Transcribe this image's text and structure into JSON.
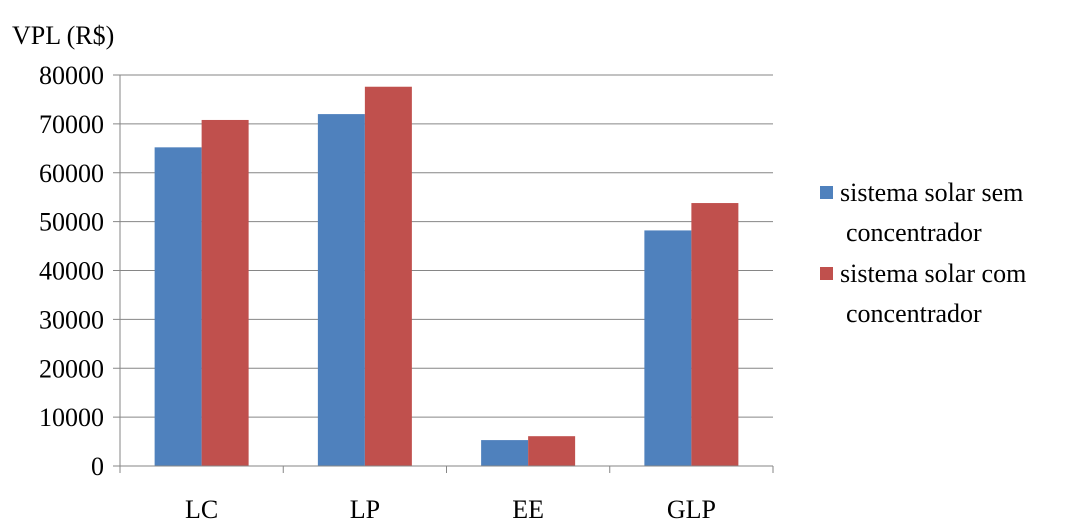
{
  "chart_data": {
    "type": "bar",
    "title": "",
    "ylabel": "VPL (R$)",
    "xlabel": "",
    "ylim": [
      0,
      80000
    ],
    "yticks": [
      0,
      10000,
      20000,
      30000,
      40000,
      50000,
      60000,
      70000,
      80000
    ],
    "categories": [
      "LC",
      "LP",
      "EE",
      "GLP"
    ],
    "series": [
      {
        "name": "sistema solar sem concentrador",
        "values": [
          65200,
          72000,
          5300,
          48200
        ],
        "color": "#4F81BD"
      },
      {
        "name": "sistema solar com concentrador",
        "values": [
          70800,
          77600,
          6100,
          53800
        ],
        "color": "#C0504D"
      }
    ],
    "legend": {
      "position": "right",
      "entries": [
        {
          "lines": [
            "sistema solar sem",
            "concentrador"
          ]
        },
        {
          "lines": [
            "sistema solar com",
            "concentrador"
          ]
        }
      ]
    },
    "grid": true
  }
}
